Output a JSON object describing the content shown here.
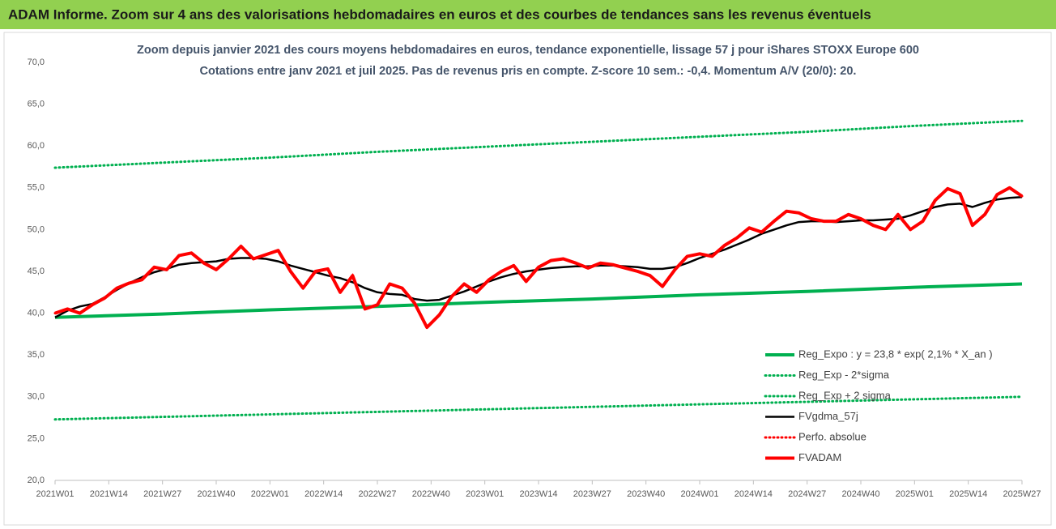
{
  "header": {
    "title": "ADAM Informe. Zoom sur 4 ans des valorisations hebdomadaires en euros et des courbes de tendances sans les revenus éventuels"
  },
  "chart_data": {
    "type": "line",
    "title": "Zoom depuis janvier 2021 des cours moyens hebdomadaires en euros, tendance exponentielle, lissage 57 j pour iShares STOXX Europe 600",
    "subtitle": "Cotations entre janv 2021 et juil 2025. Pas de revenus pris en compte. Z-score 10 sem.: -0,4. Momentum A/V (20/0): 20.",
    "xlim": [
      0,
      234
    ],
    "xticks": [
      {
        "value": 0,
        "label": "2021W01"
      },
      {
        "value": 13,
        "label": "2021W14"
      },
      {
        "value": 26,
        "label": "2021W27"
      },
      {
        "value": 39,
        "label": "2021W40"
      },
      {
        "value": 52,
        "label": "2022W01"
      },
      {
        "value": 65,
        "label": "2022W14"
      },
      {
        "value": 78,
        "label": "2022W27"
      },
      {
        "value": 91,
        "label": "2022W40"
      },
      {
        "value": 104,
        "label": "2023W01"
      },
      {
        "value": 117,
        "label": "2023W14"
      },
      {
        "value": 130,
        "label": "2023W27"
      },
      {
        "value": 143,
        "label": "2023W40"
      },
      {
        "value": 156,
        "label": "2024W01"
      },
      {
        "value": 169,
        "label": "2024W14"
      },
      {
        "value": 182,
        "label": "2024W27"
      },
      {
        "value": 195,
        "label": "2024W40"
      },
      {
        "value": 208,
        "label": "2025W01"
      },
      {
        "value": 221,
        "label": "2025W14"
      },
      {
        "value": 234,
        "label": "2025W27"
      }
    ],
    "ylim": [
      20,
      70
    ],
    "yticks": [
      {
        "value": 20,
        "label": "20,0"
      },
      {
        "value": 25,
        "label": "25,0"
      },
      {
        "value": 30,
        "label": "30,0"
      },
      {
        "value": 35,
        "label": "35,0"
      },
      {
        "value": 40,
        "label": "40,0"
      },
      {
        "value": 45,
        "label": "45,0"
      },
      {
        "value": 50,
        "label": "50,0"
      },
      {
        "value": 55,
        "label": "55,0"
      },
      {
        "value": 60,
        "label": "60,0"
      },
      {
        "value": 65,
        "label": "65,0"
      },
      {
        "value": 70,
        "label": "70,0"
      }
    ],
    "grid": false,
    "legend": "bottom-right",
    "series": [
      {
        "name": "Reg_Expo : y = 23,8 * exp( 2,1% *  X_an )",
        "color": "#00b050",
        "style": "solid",
        "x": [
          0,
          26,
          52,
          78,
          104,
          130,
          156,
          182,
          208,
          234
        ],
        "values": [
          39.5,
          39.9,
          40.4,
          40.8,
          41.3,
          41.7,
          42.2,
          42.6,
          43.1,
          43.5
        ]
      },
      {
        "name": "Reg_Exp - 2*sigma",
        "color": "#00b050",
        "style": "dotted",
        "x": [
          0,
          26,
          52,
          78,
          104,
          130,
          156,
          182,
          208,
          234
        ],
        "values": [
          27.3,
          27.6,
          27.9,
          28.2,
          28.5,
          28.8,
          29.1,
          29.4,
          29.7,
          30.0
        ]
      },
      {
        "name": "Reg_Exp + 2 sigma",
        "color": "#00b050",
        "style": "dotted",
        "x": [
          0,
          26,
          52,
          78,
          104,
          130,
          156,
          182,
          208,
          234
        ],
        "values": [
          57.4,
          58.0,
          58.6,
          59.3,
          59.9,
          60.5,
          61.1,
          61.7,
          62.4,
          63.0
        ]
      },
      {
        "name": "FVgdma_57j",
        "color": "#000000",
        "style": "solid",
        "x": [
          0,
          3,
          6,
          9,
          12,
          15,
          18,
          21,
          24,
          27,
          30,
          33,
          36,
          39,
          42,
          45,
          48,
          51,
          54,
          57,
          60,
          63,
          66,
          69,
          72,
          75,
          78,
          81,
          84,
          87,
          90,
          93,
          96,
          99,
          102,
          105,
          108,
          111,
          114,
          117,
          120,
          123,
          126,
          129,
          132,
          135,
          138,
          141,
          144,
          147,
          150,
          153,
          156,
          159,
          162,
          165,
          168,
          171,
          174,
          177,
          180,
          183,
          186,
          189,
          192,
          195,
          198,
          201,
          204,
          207,
          210,
          213,
          216,
          219,
          222,
          225,
          228,
          231,
          234
        ],
        "values": [
          39.5,
          40.3,
          40.8,
          41.1,
          41.9,
          42.8,
          43.6,
          44.3,
          44.9,
          45.3,
          45.8,
          46.0,
          46.1,
          46.2,
          46.5,
          46.6,
          46.6,
          46.5,
          46.2,
          45.7,
          45.3,
          44.9,
          44.5,
          44.2,
          43.7,
          43.0,
          42.5,
          42.3,
          42.2,
          41.7,
          41.5,
          41.6,
          42.1,
          42.6,
          43.2,
          43.8,
          44.3,
          44.7,
          45.0,
          45.2,
          45.4,
          45.5,
          45.6,
          45.6,
          45.7,
          45.7,
          45.6,
          45.5,
          45.3,
          45.3,
          45.5,
          46.0,
          46.6,
          47.1,
          47.6,
          48.2,
          48.8,
          49.5,
          50.0,
          50.5,
          50.9,
          51.0,
          51.0,
          50.9,
          51.0,
          51.1,
          51.1,
          51.2,
          51.3,
          51.7,
          52.2,
          52.7,
          53.0,
          53.1,
          52.7,
          53.2,
          53.6,
          53.8,
          53.9
        ]
      },
      {
        "name": "Perfo. absolue",
        "color": "#ff0000",
        "style": "dotted",
        "x": [
          0,
          3,
          6,
          9,
          12,
          15,
          18,
          21,
          24,
          27,
          30,
          33,
          36,
          39,
          42,
          45,
          48,
          51,
          54,
          57,
          60,
          63,
          66,
          69,
          72,
          75,
          78,
          81,
          84,
          87,
          90,
          93,
          96,
          99,
          102,
          105,
          108,
          111,
          114,
          117,
          120,
          123,
          126,
          129,
          132,
          135,
          138,
          141,
          144,
          147,
          150,
          153,
          156,
          159,
          162,
          165,
          168,
          171,
          174,
          177,
          180,
          183,
          186,
          189,
          192,
          195,
          198,
          201,
          204,
          207,
          210,
          213,
          216,
          219,
          222,
          225,
          228,
          231,
          234
        ],
        "values": [
          40.0,
          40.5,
          40.0,
          41.0,
          41.8,
          43.0,
          43.6,
          44.0,
          45.5,
          45.2,
          46.9,
          47.2,
          46.0,
          45.2,
          46.5,
          48.0,
          46.5,
          47.0,
          47.5,
          45.0,
          43.0,
          45.0,
          45.3,
          42.5,
          44.5,
          40.5,
          41.0,
          43.5,
          43.0,
          41.2,
          38.3,
          39.8,
          42.0,
          43.5,
          42.5,
          44.0,
          45.0,
          45.7,
          43.8,
          45.5,
          46.3,
          46.5,
          46.0,
          45.4,
          46.0,
          45.8,
          45.4,
          45.0,
          44.5,
          43.2,
          45.2,
          46.8,
          47.1,
          46.8,
          48.1,
          49.0,
          50.2,
          49.7,
          51.0,
          52.2,
          52.0,
          51.3,
          51.0,
          51.0,
          51.8,
          51.3,
          50.5,
          50.0,
          51.8,
          50.0,
          51.0,
          53.5,
          54.9,
          54.3,
          50.5,
          51.8,
          54.2,
          55.0,
          54.0
        ]
      },
      {
        "name": "FVADAM",
        "color": "#ff0000",
        "style": "solid",
        "x": [
          0,
          3,
          6,
          9,
          12,
          15,
          18,
          21,
          24,
          27,
          30,
          33,
          36,
          39,
          42,
          45,
          48,
          51,
          54,
          57,
          60,
          63,
          66,
          69,
          72,
          75,
          78,
          81,
          84,
          87,
          90,
          93,
          96,
          99,
          102,
          105,
          108,
          111,
          114,
          117,
          120,
          123,
          126,
          129,
          132,
          135,
          138,
          141,
          144,
          147,
          150,
          153,
          156,
          159,
          162,
          165,
          168,
          171,
          174,
          177,
          180,
          183,
          186,
          189,
          192,
          195,
          198,
          201,
          204,
          207,
          210,
          213,
          216,
          219,
          222,
          225,
          228,
          231,
          234
        ],
        "values": [
          40.0,
          40.5,
          40.0,
          41.0,
          41.8,
          43.0,
          43.6,
          44.0,
          45.5,
          45.2,
          46.9,
          47.2,
          46.0,
          45.2,
          46.5,
          48.0,
          46.5,
          47.0,
          47.5,
          45.0,
          43.0,
          45.0,
          45.3,
          42.5,
          44.5,
          40.5,
          41.0,
          43.5,
          43.0,
          41.2,
          38.3,
          39.8,
          42.0,
          43.5,
          42.5,
          44.0,
          45.0,
          45.7,
          43.8,
          45.5,
          46.3,
          46.5,
          46.0,
          45.4,
          46.0,
          45.8,
          45.4,
          45.0,
          44.5,
          43.2,
          45.2,
          46.8,
          47.1,
          46.8,
          48.1,
          49.0,
          50.2,
          49.7,
          51.0,
          52.2,
          52.0,
          51.3,
          51.0,
          51.0,
          51.8,
          51.3,
          50.5,
          50.0,
          51.8,
          50.0,
          51.0,
          53.5,
          54.9,
          54.3,
          50.5,
          51.8,
          54.2,
          55.0,
          54.0
        ]
      }
    ]
  }
}
